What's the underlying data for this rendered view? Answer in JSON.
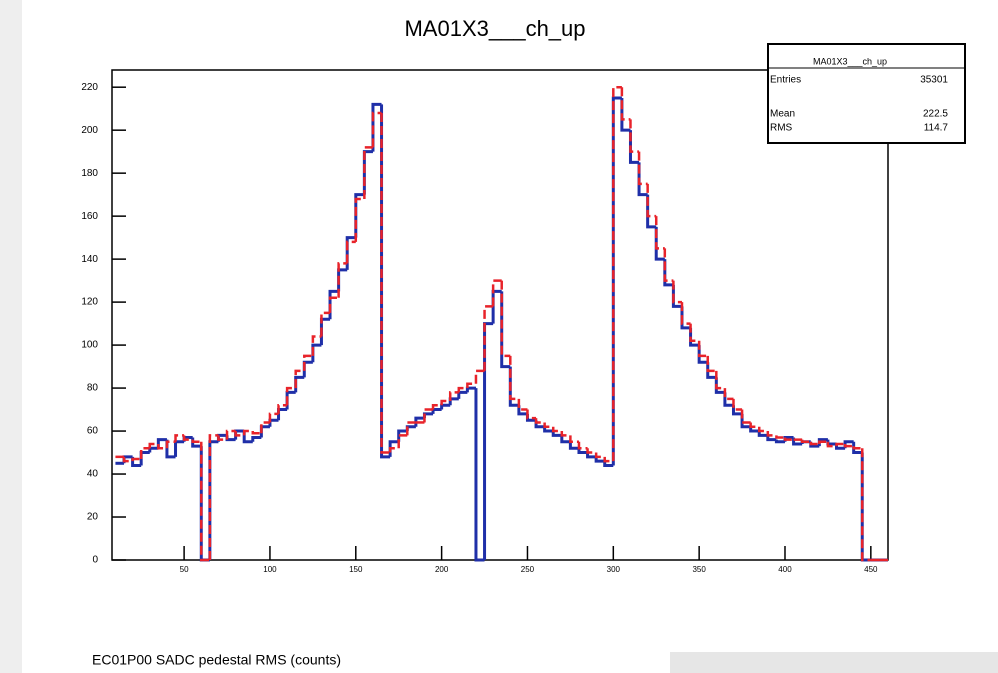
{
  "chart_data": {
    "type": "histogram",
    "title": "MA01X3___ch_up",
    "xlabel": "EC01P00 SADC pedestal RMS (counts)",
    "bins": [
      10,
      15,
      20,
      25,
      30,
      35,
      40,
      45,
      50,
      55,
      60,
      65,
      70,
      75,
      80,
      85,
      90,
      95,
      100,
      105,
      110,
      115,
      120,
      125,
      130,
      135,
      140,
      145,
      150,
      155,
      160,
      165,
      170,
      175,
      180,
      185,
      190,
      195,
      200,
      205,
      210,
      215,
      220,
      225,
      230,
      235,
      240,
      245,
      250,
      255,
      260,
      265,
      270,
      275,
      280,
      285,
      290,
      295,
      300,
      305,
      310,
      315,
      320,
      325,
      330,
      335,
      340,
      345,
      350,
      355,
      360,
      365,
      370,
      375,
      380,
      385,
      390,
      395,
      400,
      405,
      410,
      415,
      420,
      425,
      430,
      435,
      440,
      445,
      450,
      455,
      460
    ],
    "series": [
      {
        "color": "#1f2fa8",
        "values": [
          45,
          48,
          44,
          50,
          52,
          56,
          48,
          55,
          57,
          53,
          0,
          55,
          58,
          56,
          60,
          55,
          57,
          62,
          65,
          70,
          78,
          85,
          92,
          100,
          112,
          125,
          135,
          150,
          170,
          190,
          212,
          48,
          55,
          60,
          62,
          66,
          68,
          70,
          72,
          75,
          78,
          80,
          0,
          110,
          125,
          90,
          72,
          68,
          65,
          62,
          60,
          58,
          55,
          52,
          50,
          48,
          46,
          44,
          215,
          200,
          185,
          170,
          155,
          140,
          128,
          118,
          108,
          100,
          92,
          85,
          78,
          72,
          68,
          62,
          60,
          58,
          56,
          55,
          57,
          54,
          55,
          53,
          56,
          54,
          52,
          55,
          50,
          0,
          0,
          0
        ]
      },
      {
        "color": "#e8232a",
        "values": [
          48,
          46,
          47,
          52,
          54,
          52,
          55,
          58,
          56,
          55,
          0,
          58,
          56,
          60,
          58,
          60,
          59,
          64,
          68,
          72,
          80,
          88,
          95,
          104,
          115,
          122,
          138,
          148,
          168,
          192,
          208,
          50,
          52,
          58,
          64,
          64,
          70,
          72,
          74,
          78,
          80,
          82,
          88,
          118,
          130,
          95,
          75,
          70,
          66,
          64,
          62,
          60,
          58,
          55,
          52,
          50,
          48,
          46,
          220,
          205,
          190,
          175,
          160,
          145,
          130,
          120,
          110,
          102,
          95,
          88,
          80,
          75,
          70,
          64,
          62,
          60,
          58,
          57,
          56,
          56,
          55,
          54,
          55,
          53,
          54,
          53,
          52,
          0,
          0,
          0
        ]
      }
    ],
    "xlim": [
      8,
      460
    ],
    "ylim": [
      0,
      228
    ],
    "xticks": [
      50,
      100,
      150,
      200,
      250,
      300,
      350,
      400,
      450
    ],
    "yticks": [
      0,
      20,
      40,
      60,
      80,
      100,
      120,
      140,
      160,
      180,
      200,
      220
    ],
    "stats": {
      "title": "MA01X3___ch_up",
      "entries_label": "Entries",
      "entries": 35301,
      "mean_label": "Mean",
      "mean": 222.5,
      "rms_label": "RMS",
      "rms": 114.7
    }
  }
}
